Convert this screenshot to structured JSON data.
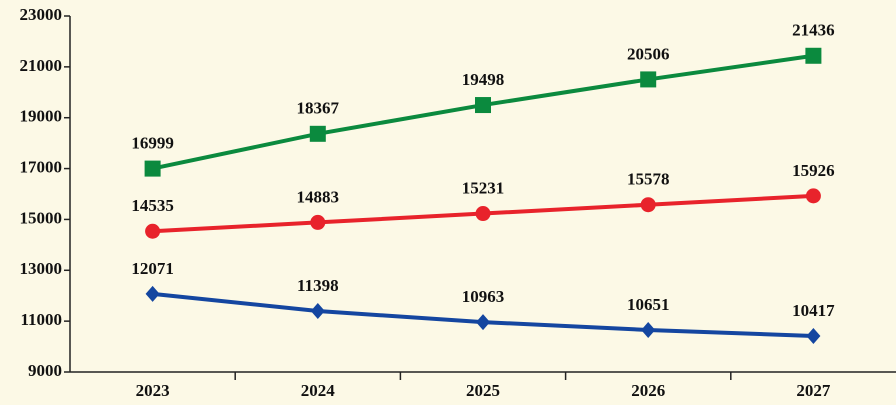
{
  "chart_data": {
    "type": "line",
    "categories": [
      "2023",
      "2024",
      "2025",
      "2026",
      "2027"
    ],
    "series": [
      {
        "color": "#0b8a3e",
        "marker": "square",
        "values": [
          16999,
          18367,
          19498,
          20506,
          21436
        ]
      },
      {
        "color": "#e8232b",
        "marker": "circle",
        "values": [
          14535,
          14883,
          15231,
          15578,
          15926
        ]
      },
      {
        "color": "#1446a0",
        "marker": "diamond",
        "values": [
          12071,
          11398,
          10963,
          10651,
          10417
        ]
      }
    ],
    "ylim": [
      9000,
      23000
    ],
    "yticks": [
      9000,
      11000,
      13000,
      15000,
      17000,
      19000,
      21000,
      23000
    ],
    "grid": false
  }
}
